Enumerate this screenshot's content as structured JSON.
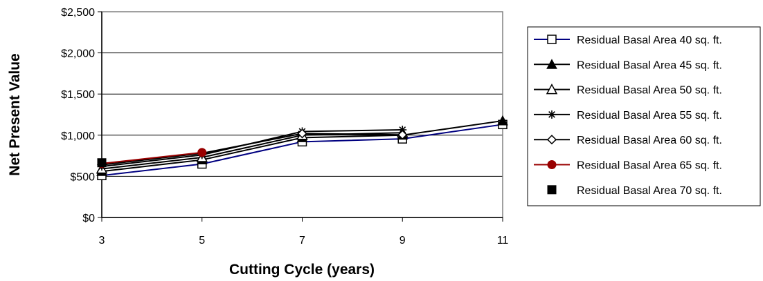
{
  "chart_data": {
    "type": "line",
    "xlabel": "Cutting Cycle (years)",
    "ylabel": "Net Present Value",
    "x": [
      3,
      5,
      7,
      9,
      11
    ],
    "xticks": [
      "3",
      "5",
      "7",
      "9",
      "11"
    ],
    "ylim": [
      0,
      2500
    ],
    "yticks": [
      "$0",
      "$500",
      "$1,000",
      "$1,500",
      "$2,000",
      "$2,500"
    ],
    "grid": true,
    "legend_position": "right",
    "series": [
      {
        "name": "Residual Basal Area 40 sq. ft.",
        "values": [
          510,
          650,
          920,
          955,
          1130
        ],
        "color": "#000080",
        "marker": "square-open"
      },
      {
        "name": "Residual Basal Area 45 sq. ft.",
        "values": [
          560,
          700,
          970,
          1000,
          1175
        ],
        "color": "#000000",
        "marker": "triangle-filled"
      },
      {
        "name": "Residual Basal Area 50 sq. ft.",
        "values": [
          590,
          730,
          1000,
          1030,
          null
        ],
        "color": "#000000",
        "marker": "triangle-open"
      },
      {
        "name": "Residual Basal Area 55 sq. ft.",
        "values": [
          620,
          760,
          1045,
          1065,
          null
        ],
        "color": "#000000",
        "marker": "asterisk"
      },
      {
        "name": "Residual Basal Area 60 sq. ft.",
        "values": [
          640,
          780,
          1020,
          1005,
          null
        ],
        "color": "#000000",
        "marker": "diamond-open"
      },
      {
        "name": "Residual Basal Area 65 sq. ft.",
        "values": [
          655,
          790,
          null,
          null,
          null
        ],
        "color": "#990000",
        "marker": "circle-filled"
      },
      {
        "name": "Residual Basal Area 70 sq. ft.",
        "values": [
          665,
          null,
          null,
          null,
          null
        ],
        "color": "#000000",
        "marker": "square-filled"
      }
    ]
  }
}
